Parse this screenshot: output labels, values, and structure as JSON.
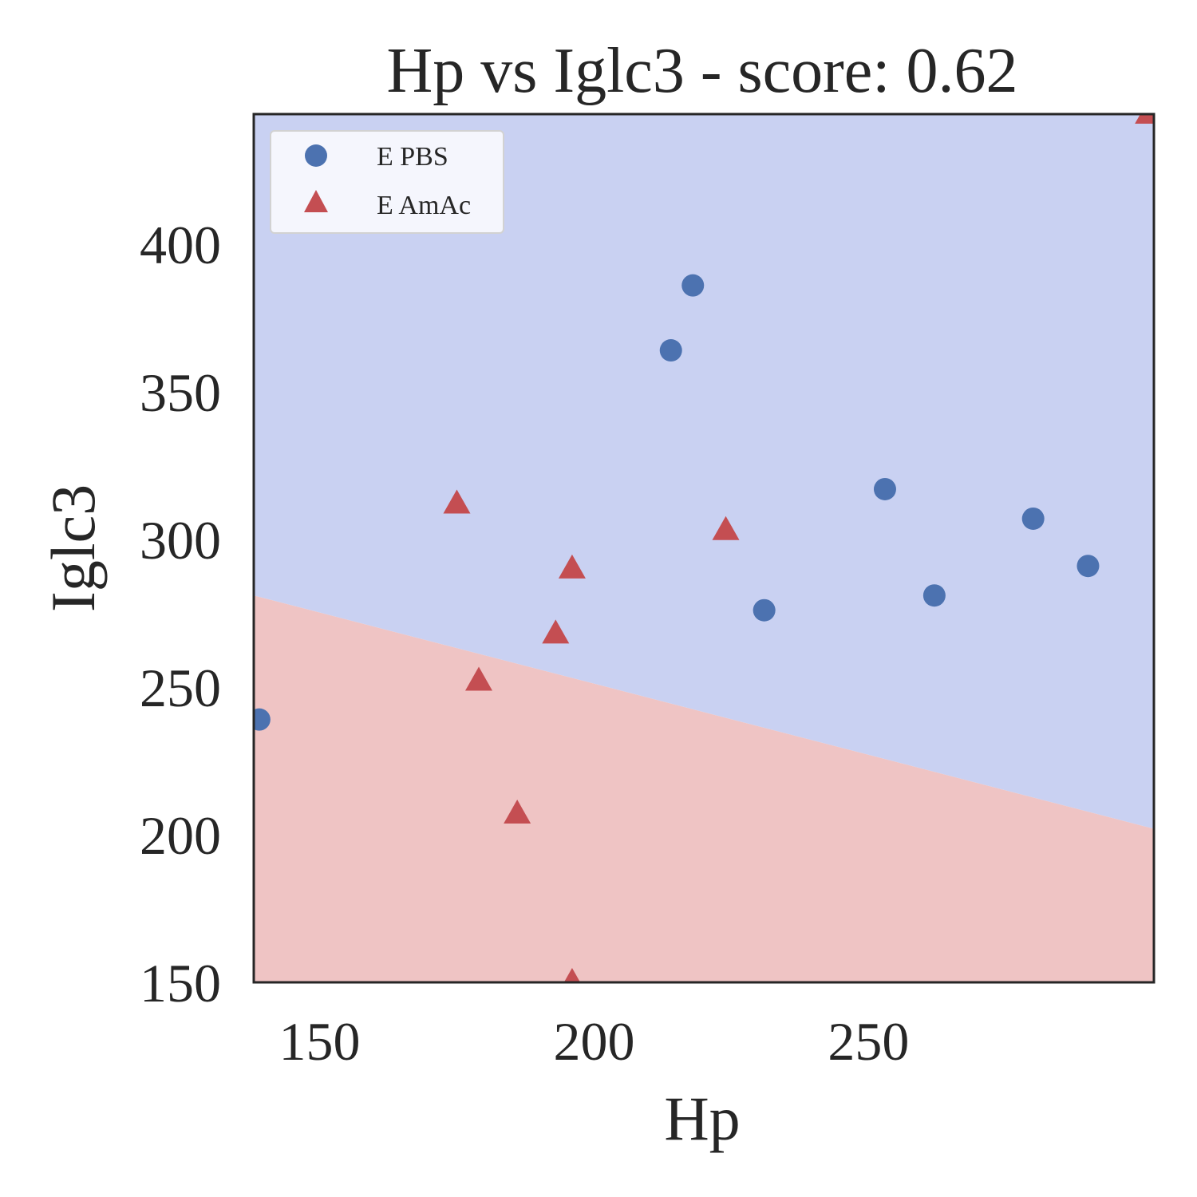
{
  "chart_data": {
    "type": "scatter",
    "title": "Hp vs Iglc3 - score: 0.62",
    "xlabel": "Hp",
    "ylabel": "Iglc3",
    "xlim": [
      138,
      302
    ],
    "ylim": [
      150,
      444
    ],
    "xticks": [
      150,
      200,
      250
    ],
    "yticks": [
      150,
      200,
      250,
      300,
      350,
      400
    ],
    "grid": false,
    "legend_position": "top-left",
    "decision_boundary": {
      "x": [
        138,
        302
      ],
      "y": [
        281,
        202
      ],
      "region_below_color": "#efc4c4",
      "region_above_color": "#c9d1f2"
    },
    "series": [
      {
        "name": "E PBS",
        "marker": "circle",
        "color": "#4c72b0",
        "points": [
          {
            "x": 139,
            "y": 239
          },
          {
            "x": 214,
            "y": 364
          },
          {
            "x": 218,
            "y": 386
          },
          {
            "x": 231,
            "y": 276
          },
          {
            "x": 253,
            "y": 317
          },
          {
            "x": 262,
            "y": 281
          },
          {
            "x": 280,
            "y": 307
          },
          {
            "x": 290,
            "y": 291
          }
        ]
      },
      {
        "name": "E AmAc",
        "marker": "triangle",
        "color": "#c44e52",
        "points": [
          {
            "x": 175,
            "y": 312
          },
          {
            "x": 179,
            "y": 252
          },
          {
            "x": 186,
            "y": 207
          },
          {
            "x": 193,
            "y": 268
          },
          {
            "x": 196,
            "y": 290
          },
          {
            "x": 196,
            "y": 150
          },
          {
            "x": 224,
            "y": 303
          },
          {
            "x": 301,
            "y": 444
          }
        ]
      }
    ]
  }
}
